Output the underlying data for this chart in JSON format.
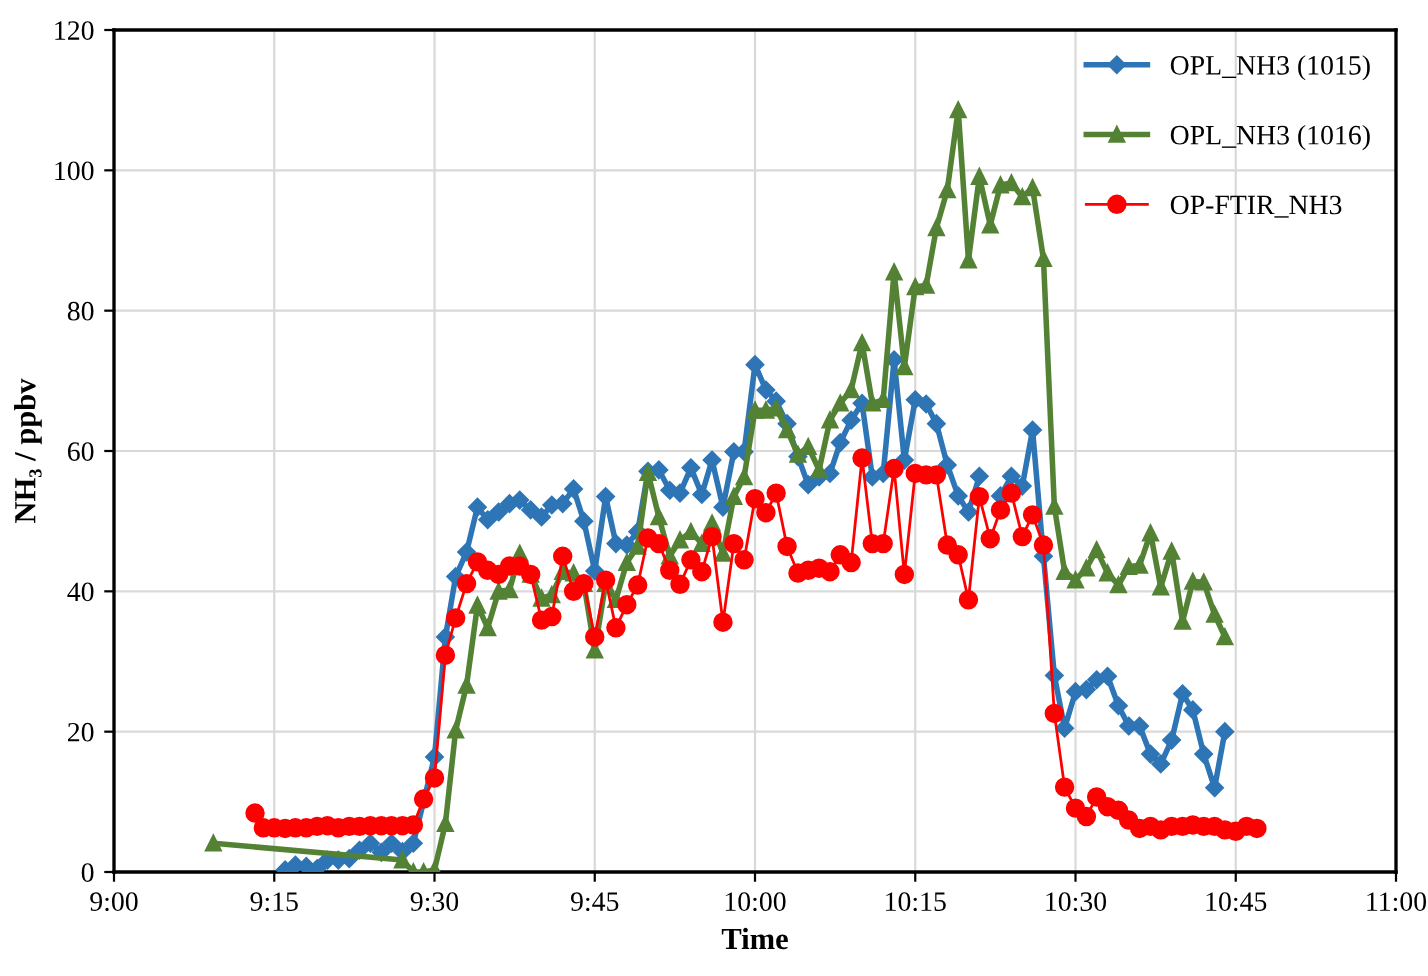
{
  "chart_data": {
    "type": "line",
    "xlabel": "Time",
    "ylabel": "NH₃ / ppbv",
    "xlim": [
      9,
      11
    ],
    "xticks": [
      {
        "value": 9,
        "label": "9:00"
      },
      {
        "value": 9.25,
        "label": "9:15"
      },
      {
        "value": 9.5,
        "label": "9:30"
      },
      {
        "value": 9.75,
        "label": "9:45"
      },
      {
        "value": 10,
        "label": "10:00"
      },
      {
        "value": 10.25,
        "label": "10:15"
      },
      {
        "value": 10.5,
        "label": "10:30"
      },
      {
        "value": 10.75,
        "label": "10:45"
      },
      {
        "value": 11,
        "label": "11:00"
      }
    ],
    "ylim": [
      0,
      120
    ],
    "yticks": [
      0,
      20,
      40,
      60,
      80,
      100,
      120
    ],
    "grid": true,
    "legend": "top right",
    "series": [
      {
        "name": "OPL_NH3 (1015)",
        "color": "#2e75b6",
        "marker": "diamond",
        "x": [
          9.267,
          9.283,
          9.3,
          9.317,
          9.333,
          9.35,
          9.367,
          9.383,
          9.4,
          9.417,
          9.433,
          9.45,
          9.467,
          9.5,
          9.517,
          9.533,
          9.55,
          9.567,
          9.583,
          9.6,
          9.617,
          9.633,
          9.65,
          9.667,
          9.683,
          9.7,
          9.717,
          9.733,
          9.75,
          9.767,
          9.783,
          9.8,
          9.817,
          9.833,
          9.85,
          9.867,
          9.883,
          9.9,
          9.917,
          9.933,
          9.95,
          9.967,
          9.983,
          10,
          10.017,
          10.033,
          10.05,
          10.067,
          10.083,
          10.1,
          10.117,
          10.133,
          10.15,
          10.167,
          10.183,
          10.2,
          10.217,
          10.233,
          10.25,
          10.267,
          10.283,
          10.3,
          10.317,
          10.333,
          10.35,
          10.367,
          10.383,
          10.4,
          10.417,
          10.433,
          10.45,
          10.467,
          10.483,
          10.5,
          10.517,
          10.533,
          10.55,
          10.567,
          10.583,
          10.6,
          10.617,
          10.633,
          10.65,
          10.667,
          10.683,
          10.7,
          10.717,
          10.733
        ],
        "values": [
          0.3,
          1,
          0.8,
          0.5,
          1.7,
          1.7,
          1.9,
          3.1,
          4.1,
          2.8,
          4.1,
          2.9,
          4.1,
          16.4,
          33.5,
          42.1,
          45.6,
          52,
          50.2,
          51.3,
          52.5,
          53,
          51.6,
          50.6,
          52.3,
          52.5,
          54.6,
          50,
          42.9,
          53.5,
          46.8,
          46.6,
          48.5,
          57.1,
          57.3,
          54.4,
          54,
          57.6,
          53.8,
          58.7,
          52,
          59.9,
          59.9,
          72.3,
          68.7,
          67.1,
          63.9,
          59.2,
          55.2,
          56.3,
          56.8,
          61.2,
          64.4,
          66.8,
          56.3,
          56.8,
          73,
          58.7,
          67.3,
          66.7,
          63.9,
          58,
          53.6,
          51.3,
          56.4,
          null,
          53.6,
          56.4,
          55,
          63,
          45,
          28,
          20.5,
          25.7,
          26,
          27.4,
          27.9,
          23.7,
          20.8,
          20.8,
          16.8,
          15.4,
          18.8,
          25.4,
          23.1,
          16.8,
          12,
          20
        ]
      },
      {
        "name": "OPL_NH3 (1016)",
        "color": "#548235",
        "marker": "triangle",
        "x": [
          9.155,
          9.45,
          9.467,
          9.483,
          9.5,
          9.517,
          9.533,
          9.55,
          9.567,
          9.583,
          9.6,
          9.617,
          9.633,
          9.65,
          9.667,
          9.683,
          9.7,
          9.717,
          9.733,
          9.75,
          9.767,
          9.783,
          9.8,
          9.817,
          9.833,
          9.85,
          9.867,
          9.883,
          9.9,
          9.917,
          9.933,
          9.95,
          9.967,
          9.983,
          10,
          10.017,
          10.033,
          10.05,
          10.067,
          10.083,
          10.1,
          10.117,
          10.133,
          10.15,
          10.167,
          10.183,
          10.2,
          10.217,
          10.233,
          10.25,
          10.267,
          10.283,
          10.3,
          10.317,
          10.333,
          10.35,
          10.367,
          10.383,
          10.4,
          10.417,
          10.433,
          10.45,
          10.467,
          10.483,
          10.5,
          10.517,
          10.533,
          10.55,
          10.567,
          10.583,
          10.6,
          10.617,
          10.633,
          10.65,
          10.667,
          10.683,
          10.7,
          10.717,
          10.733
        ],
        "values": [
          4.1,
          1.7,
          0,
          0,
          0.3,
          6.9,
          20.2,
          26.6,
          38,
          34.8,
          40,
          40.2,
          45.4,
          42.4,
          39,
          39.5,
          42.8,
          42.6,
          41.1,
          31.6,
          41.1,
          38.8,
          44.1,
          46.4,
          56.9,
          50.6,
          45,
          47.3,
          48.5,
          46.8,
          49.7,
          45.4,
          53.5,
          56.3,
          65.8,
          65.8,
          66.1,
          63,
          59.5,
          60.6,
          57.3,
          64.4,
          66.8,
          68.7,
          75.4,
          66.8,
          67.3,
          85.5,
          72,
          83.4,
          83.6,
          91.8,
          97.2,
          108.6,
          87.2,
          99.1,
          92.2,
          97.9,
          98.2,
          96.2,
          97.5,
          87.4,
          52.1,
          42.8,
          41.6,
          43.3,
          45.9,
          42.6,
          40.9,
          43.5,
          43.7,
          48.3,
          40.6,
          45.7,
          35.7,
          41.4,
          41.3,
          36.7,
          33.5
        ]
      },
      {
        "name": "OP-FTIR_NH3",
        "color": "#ff0000",
        "marker": "circle",
        "x": [
          9.22,
          9.233,
          9.25,
          9.267,
          9.283,
          9.3,
          9.317,
          9.333,
          9.35,
          9.367,
          9.383,
          9.4,
          9.417,
          9.433,
          9.45,
          9.467,
          9.483,
          9.5,
          9.517,
          9.533,
          9.55,
          9.567,
          9.583,
          9.6,
          9.617,
          9.633,
          9.65,
          9.667,
          9.683,
          9.7,
          9.717,
          9.733,
          9.75,
          9.767,
          9.783,
          9.8,
          9.817,
          9.833,
          9.85,
          9.867,
          9.883,
          9.9,
          9.917,
          9.933,
          9.95,
          9.967,
          9.983,
          10,
          10.017,
          10.033,
          10.05,
          10.067,
          10.083,
          10.1,
          10.117,
          10.133,
          10.15,
          10.167,
          10.183,
          10.2,
          10.217,
          10.233,
          10.25,
          10.267,
          10.283,
          10.3,
          10.317,
          10.333,
          10.35,
          10.367,
          10.383,
          10.4,
          10.417,
          10.433,
          10.45,
          10.467,
          10.483,
          10.5,
          10.517,
          10.533,
          10.55,
          10.567,
          10.583,
          10.6,
          10.617,
          10.633,
          10.65,
          10.667,
          10.683,
          10.7,
          10.717,
          10.733,
          10.75,
          10.767,
          10.783
        ],
        "values": [
          8.4,
          6.3,
          6.3,
          6.2,
          6.3,
          6.3,
          6.5,
          6.6,
          6.3,
          6.5,
          6.5,
          6.6,
          6.6,
          6.6,
          6.6,
          6.7,
          10.4,
          13.4,
          30.9,
          36.2,
          41.1,
          44.2,
          43,
          42.4,
          43.6,
          43.6,
          42.4,
          35.9,
          36.4,
          45,
          40,
          41.1,
          33.5,
          41.6,
          34.8,
          38.1,
          40.9,
          47.6,
          46.8,
          43,
          41,
          44.5,
          42.8,
          47.8,
          35.6,
          46.8,
          44.5,
          53.2,
          51.2,
          54,
          46.4,
          42.6,
          43,
          43.3,
          42.8,
          45.2,
          44.1,
          59,
          46.8,
          46.8,
          57.5,
          42.4,
          56.8,
          56.6,
          56.6,
          46.6,
          45.2,
          38.8,
          53.5,
          47.5,
          51.6,
          54,
          47.8,
          50.9,
          46.6,
          22.6,
          12.1,
          9.1,
          7.9,
          10.7,
          9.3,
          8.8,
          7.4,
          6.2,
          6.5,
          6,
          6.5,
          6.5,
          6.7,
          6.5,
          6.5,
          6,
          5.8,
          6.5,
          6.2
        ]
      }
    ]
  }
}
